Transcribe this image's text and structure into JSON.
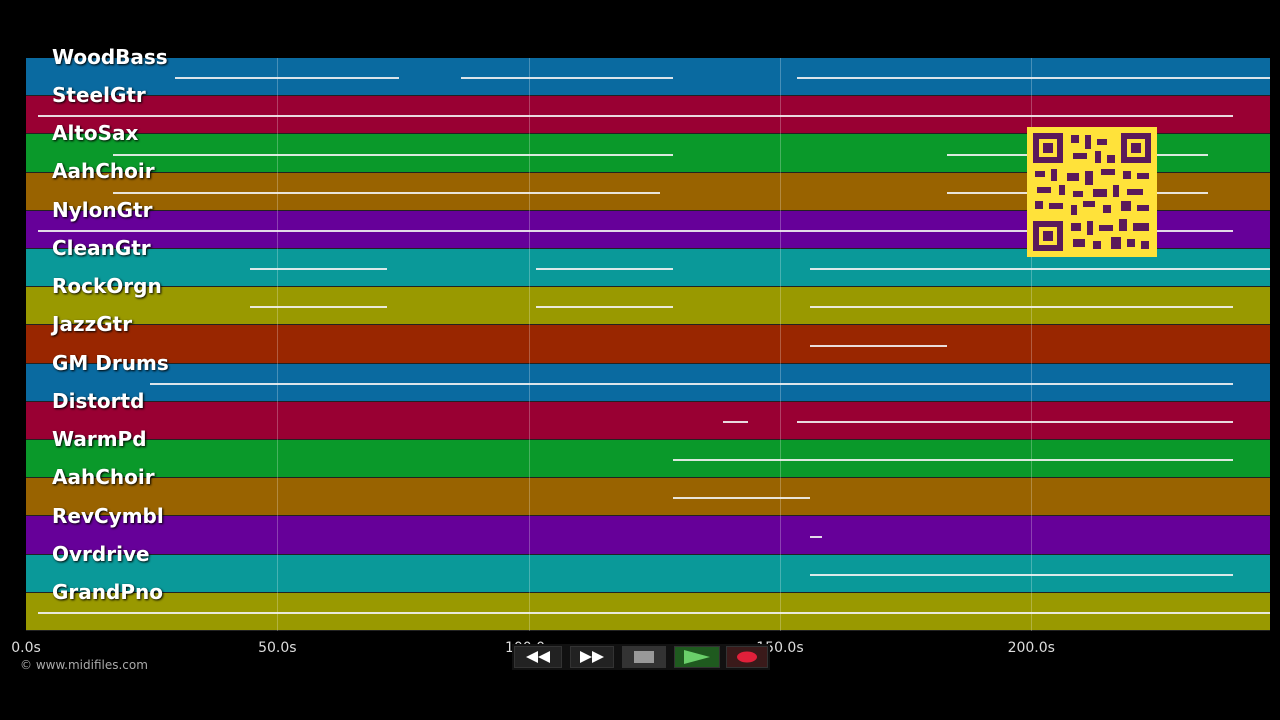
{
  "tracks": [
    {
      "label": "WoodBass",
      "color": "#0a6aa0"
    },
    {
      "label": "SteelGtr",
      "color": "#990033"
    },
    {
      "label": "AltoSax",
      "color": "#0a992a"
    },
    {
      "label": "AahChoir",
      "color": "#996300"
    },
    {
      "label": "NylonGtr",
      "color": "#660099"
    },
    {
      "label": "CleanGtr",
      "color": "#0a9999"
    },
    {
      "label": "RockOrgn",
      "color": "#999900"
    },
    {
      "label": "JazzGtr",
      "color": "#992600"
    },
    {
      "label": "GM Drums",
      "color": "#0a6aa0"
    },
    {
      "label": "Distortd",
      "color": "#990033"
    },
    {
      "label": "WarmPd",
      "color": "#0a992a"
    },
    {
      "label": "AahChoir",
      "color": "#996300"
    },
    {
      "label": "RevCymbl",
      "color": "#660099"
    },
    {
      "label": "Ovrdrive",
      "color": "#0a9999"
    },
    {
      "label": "GrandPno",
      "color": "#999900"
    }
  ],
  "timeline": {
    "ticks": [
      {
        "label": "0.0s",
        "seconds": 0
      },
      {
        "label": "50.0s",
        "seconds": 50
      },
      {
        "label": "100.0s",
        "seconds": 100
      },
      {
        "label": "150.0s",
        "seconds": 150
      },
      {
        "label": "200.0s",
        "seconds": 200
      }
    ],
    "end_seconds": 247.5
  },
  "copyright": "© www.midifiles.com",
  "transport": {
    "buttons": [
      {
        "name": "rewind-button",
        "icon": "rewind-icon"
      },
      {
        "name": "fast-forward-button",
        "icon": "fast-forward-icon"
      },
      {
        "name": "stop-button",
        "icon": "stop-icon"
      },
      {
        "name": "play-button",
        "icon": "play-icon"
      },
      {
        "name": "record-button",
        "icon": "record-icon"
      }
    ]
  },
  "qr_code": {
    "icon": "qr-code-icon",
    "color": "#ffe23a"
  }
}
